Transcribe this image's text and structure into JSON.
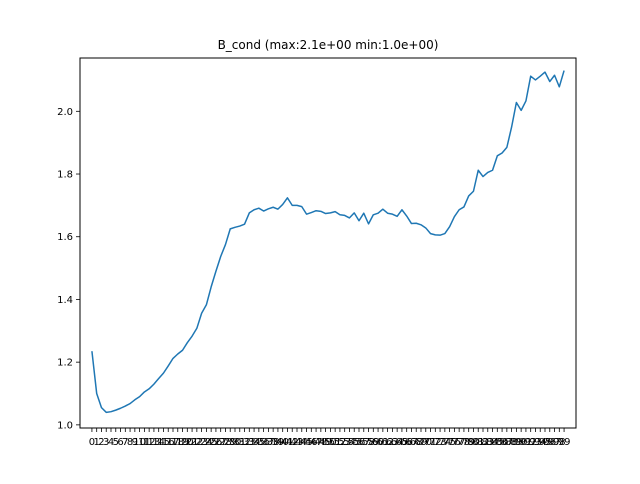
{
  "chart_data": {
    "type": "line",
    "title": "B_cond (max:2.1e+00 min:1.0e+00)",
    "xlabel": "",
    "ylabel": "",
    "grid": false,
    "xlim": [
      -2.5,
      101.5
    ],
    "ylim": [
      0.99,
      2.17
    ],
    "x_ticks": [
      0,
      1,
      2,
      3,
      4,
      5,
      6,
      7,
      8,
      9,
      10,
      11,
      12,
      13,
      14,
      15,
      16,
      17,
      18,
      19,
      20,
      21,
      22,
      23,
      24,
      25,
      26,
      27,
      28,
      29,
      30,
      31,
      32,
      33,
      34,
      35,
      36,
      37,
      38,
      39,
      40,
      41,
      42,
      43,
      44,
      45,
      46,
      47,
      48,
      49,
      50,
      51,
      52,
      53,
      54,
      55,
      56,
      57,
      58,
      59,
      60,
      61,
      62,
      63,
      64,
      65,
      66,
      67,
      68,
      69,
      70,
      71,
      72,
      73,
      74,
      75,
      76,
      77,
      78,
      79,
      80,
      81,
      82,
      83,
      84,
      85,
      86,
      87,
      88,
      89,
      90,
      91,
      92,
      93,
      94,
      95,
      96,
      97,
      98,
      99
    ],
    "y_ticks": [
      "1.0",
      "1.2",
      "1.4",
      "1.6",
      "1.8",
      "2.0"
    ],
    "y_tick_values": [
      1.0,
      1.2,
      1.4,
      1.6,
      1.8,
      2.0
    ],
    "line_color": "#1f77b4",
    "series": [
      {
        "values": [
          1.235,
          1.1,
          1.055,
          1.04,
          1.042,
          1.047,
          1.053,
          1.06,
          1.068,
          1.08,
          1.09,
          1.105,
          1.115,
          1.13,
          1.148,
          1.165,
          1.188,
          1.212,
          1.226,
          1.238,
          1.262,
          1.283,
          1.308,
          1.356,
          1.383,
          1.44,
          1.49,
          1.537,
          1.575,
          1.625,
          1.63,
          1.634,
          1.64,
          1.676,
          1.686,
          1.691,
          1.682,
          1.689,
          1.694,
          1.688,
          1.703,
          1.724,
          1.7,
          1.7,
          1.696,
          1.672,
          1.677,
          1.683,
          1.681,
          1.674,
          1.676,
          1.68,
          1.67,
          1.668,
          1.66,
          1.676,
          1.651,
          1.675,
          1.641,
          1.67,
          1.675,
          1.688,
          1.675,
          1.672,
          1.665,
          1.686,
          1.666,
          1.642,
          1.643,
          1.638,
          1.628,
          1.61,
          1.606,
          1.605,
          1.61,
          1.632,
          1.664,
          1.686,
          1.695,
          1.73,
          1.745,
          1.812,
          1.792,
          1.805,
          1.812,
          1.858,
          1.867,
          1.885,
          1.95,
          2.028,
          2.003,
          2.033,
          2.112,
          2.1,
          2.112,
          2.125,
          2.095,
          2.115,
          2.078,
          2.13
        ]
      }
    ]
  }
}
